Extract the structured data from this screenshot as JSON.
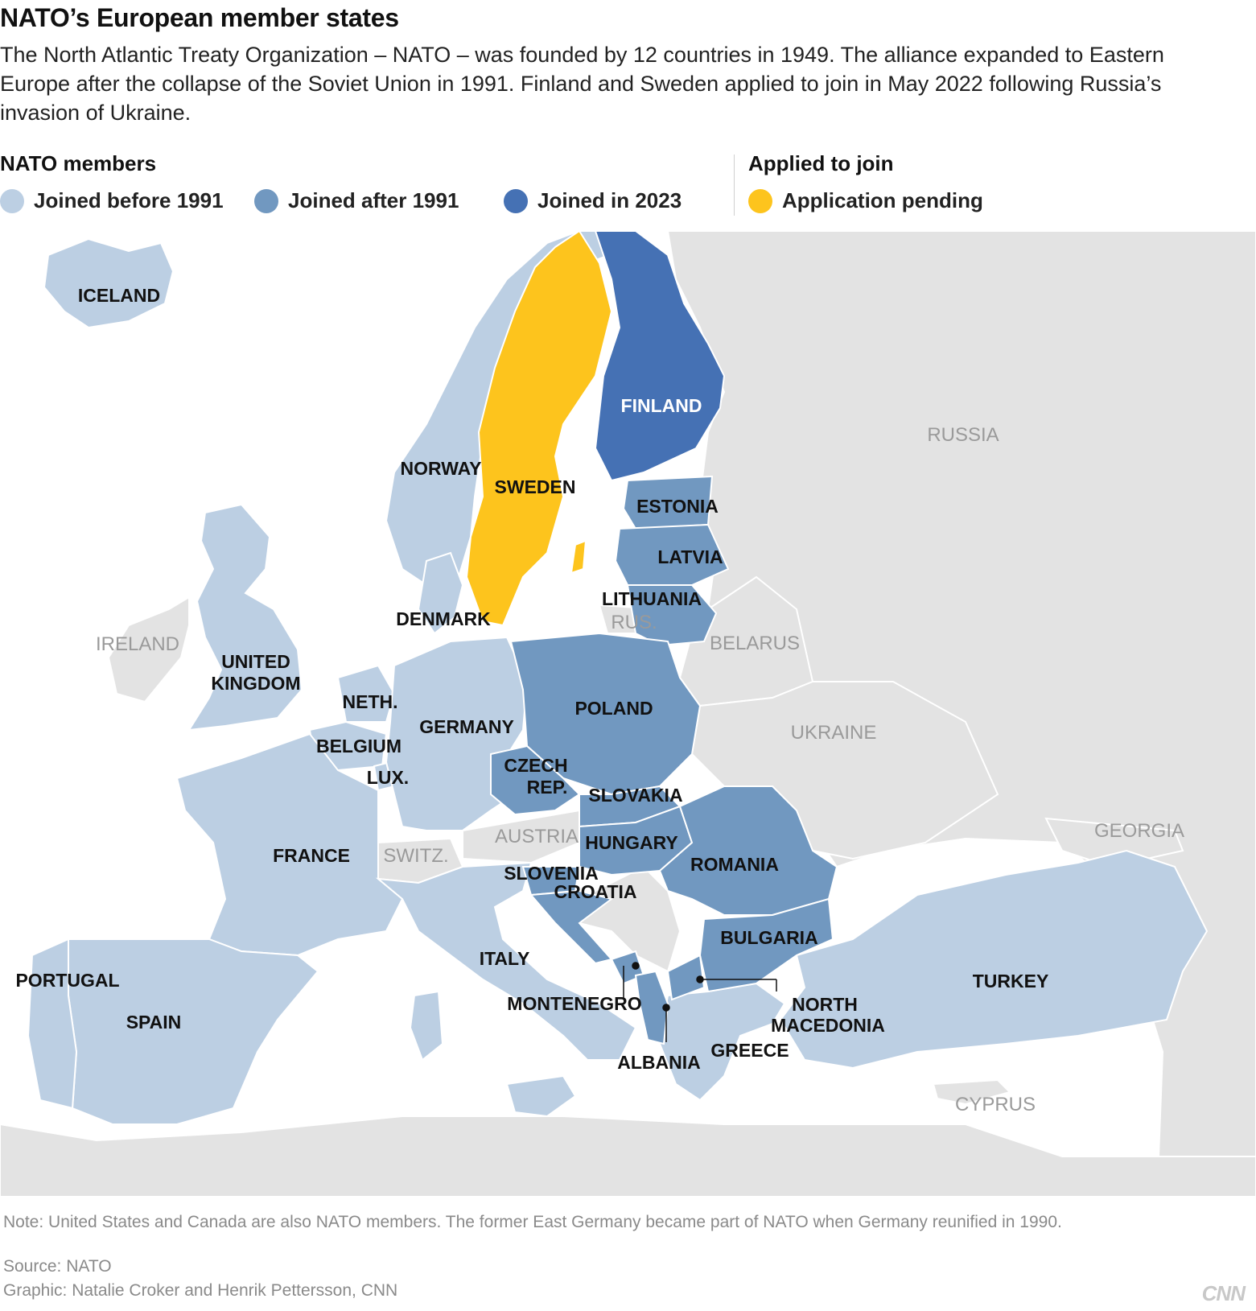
{
  "title": "NATO’s European member states",
  "description": "The North Atlantic Treaty Organization – NATO – was founded by 12 countries in 1949. The alliance expanded to Eastern Europe after the collapse of the Soviet Union in 1991. Finland and Sweden applied to join in May 2022 following Russia’s invasion of Ukraine.",
  "legend": {
    "members_heading": "NATO members",
    "applied_heading": "Applied to join",
    "items": [
      {
        "label": "Joined before 1991",
        "color": "#bccfe3"
      },
      {
        "label": "Joined after 1991",
        "color": "#7198c0"
      },
      {
        "label": "Joined in 2023",
        "color": "#4571b4"
      },
      {
        "label": "Application pending",
        "color": "#fdc41d"
      }
    ]
  },
  "colors": {
    "sea": "#ffffff",
    "non_member": "#e3e3e3",
    "border": "#ffffff"
  },
  "map": {
    "labels": {
      "iceland": "ICELAND",
      "norway": "NORWAY",
      "sweden": "SWEDEN",
      "finland": "FINLAND",
      "russia": "RUSSIA",
      "estonia": "ESTONIA",
      "latvia": "LATVIA",
      "lithuania": "LITHUANIA",
      "rus": "RUS.",
      "denmark": "DENMARK",
      "ireland": "IRELAND",
      "uk_1": "UNITED",
      "uk_2": "KINGDOM",
      "belarus": "BELARUS",
      "neth": "NETH.",
      "germany": "GERMANY",
      "poland": "POLAND",
      "belgium": "BELGIUM",
      "ukraine": "UKRAINE",
      "czech_1": "CZECH",
      "czech_2": "REP.",
      "lux": "LUX.",
      "slovakia": "SLOVAKIA",
      "austria": "AUSTRIA",
      "georgia": "GEORGIA",
      "france": "FRANCE",
      "switz": "SWITZ.",
      "hungary": "HUNGARY",
      "romania": "ROMANIA",
      "slovenia": "SLOVENIA",
      "croatia": "CROATIA",
      "bulgaria": "BULGARIA",
      "italy": "ITALY",
      "portugal": "PORTUGAL",
      "turkey": "TURKEY",
      "montenegro": "MONTENEGRO",
      "north_mac_1": "NORTH",
      "north_mac_2": "MACEDONIA",
      "spain": "SPAIN",
      "greece": "GREECE",
      "albania": "ALBANIA",
      "cyprus": "CYPRUS"
    }
  },
  "note": "Note: United States and Canada are also NATO members. The former East Germany became part of NATO when Germany reunified in 1990.",
  "source": "Source: NATO",
  "graphic_credit": "Graphic: Natalie Croker and Henrik Pettersson, CNN",
  "logo": "CNN"
}
